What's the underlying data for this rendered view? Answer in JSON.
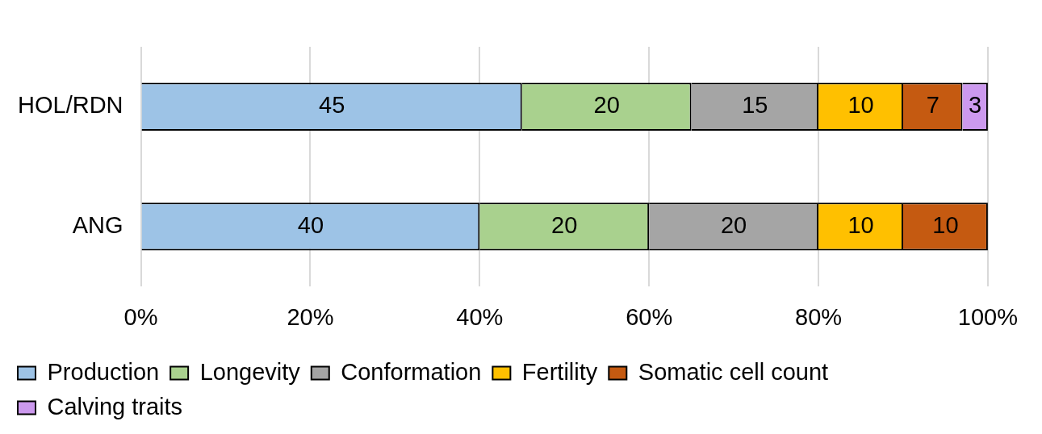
{
  "chart_data": {
    "type": "bar",
    "orientation": "horizontal",
    "stacked": true,
    "categories": [
      "HOL/RDN",
      "ANG"
    ],
    "series": [
      {
        "name": "Production",
        "color": "#9dc3e6",
        "values": [
          45,
          40
        ]
      },
      {
        "name": "Longevity",
        "color": "#a9d18e",
        "values": [
          20,
          20
        ]
      },
      {
        "name": "Conformation",
        "color": "#a5a5a5",
        "values": [
          15,
          20
        ]
      },
      {
        "name": "Fertility",
        "color": "#ffc000",
        "values": [
          10,
          10
        ]
      },
      {
        "name": "Somatic cell count",
        "color": "#c55a11",
        "values": [
          7,
          10
        ]
      },
      {
        "name": "Calving traits",
        "color": "#cc99ee",
        "values": [
          3,
          null
        ]
      }
    ],
    "xlim": [
      0,
      100
    ],
    "xticks": [
      {
        "value": 0,
        "label": "0%"
      },
      {
        "value": 20,
        "label": "20%"
      },
      {
        "value": 40,
        "label": "40%"
      },
      {
        "value": 60,
        "label": "60%"
      },
      {
        "value": 80,
        "label": "80%"
      },
      {
        "value": 100,
        "label": "100%"
      }
    ],
    "grid": "x",
    "legend": "bottom",
    "data_labels": true
  }
}
